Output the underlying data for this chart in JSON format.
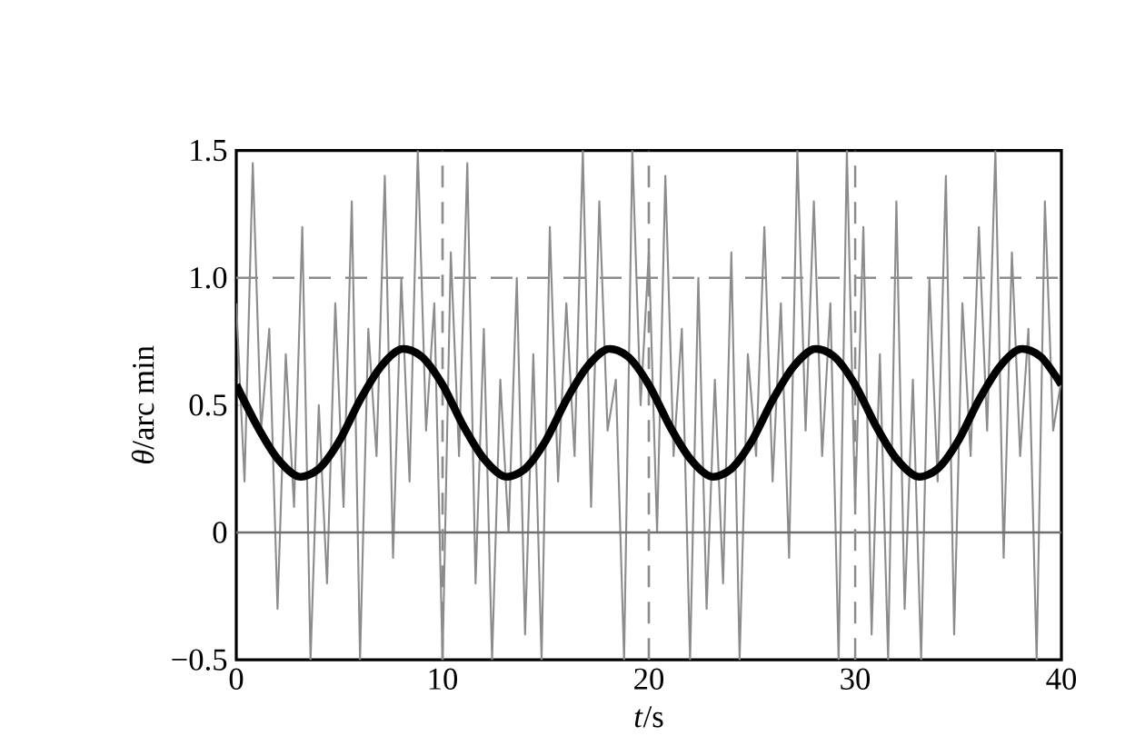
{
  "chart_data": {
    "type": "line",
    "xlabel": "*t*/s",
    "ylabel": "*θ*/arc min",
    "xlim": [
      0,
      40
    ],
    "ylim": [
      -0.5,
      1.5
    ],
    "xticks": [
      0,
      10,
      20,
      30,
      40
    ],
    "yticks": [
      {
        "value": -0.5,
        "label": "−0.5"
      },
      0,
      0.5,
      {
        "value": 1.0,
        "label": "1.0"
      },
      1.5
    ],
    "grid": false,
    "marker": "none",
    "ref_lines": [
      {
        "axis": "y",
        "value": 1.0,
        "color": "#8c8c8c",
        "line_style": "dashed"
      },
      {
        "axis": "y",
        "value": 0,
        "color": "#6e6e6e",
        "line_style": "solid"
      },
      {
        "axis": "x",
        "value": 10,
        "color": "#8c8c8c",
        "line_style": "dashed"
      },
      {
        "axis": "x",
        "value": 20,
        "color": "#8c8c8c",
        "line_style": "dashed"
      },
      {
        "axis": "x",
        "value": 30,
        "color": "#8c8c8c",
        "line_style": "dashed"
      }
    ],
    "series": [
      {
        "color": "#8c8c8c",
        "line_style": "solid",
        "x": [
          0,
          0.4,
          0.8,
          1.2,
          1.6,
          2,
          2.4,
          2.8,
          3.2,
          3.6,
          4,
          4.4,
          4.8,
          5.2,
          5.6,
          6,
          6.4,
          6.8,
          7.2,
          7.6,
          8,
          8.4,
          8.8,
          9.2,
          9.6,
          10,
          10.4,
          10.8,
          11.2,
          11.6,
          12,
          12.4,
          12.8,
          13.2,
          13.6,
          14,
          14.4,
          14.8,
          15.2,
          15.6,
          16,
          16.4,
          16.8,
          17.2,
          17.6,
          18,
          18.4,
          18.8,
          19.2,
          19.6,
          20,
          20.4,
          20.8,
          21.2,
          21.6,
          22,
          22.4,
          22.8,
          23.2,
          23.6,
          24,
          24.4,
          24.8,
          25.2,
          25.6,
          26,
          26.4,
          26.8,
          27.2,
          27.6,
          28,
          28.4,
          28.8,
          29.2,
          29.6,
          30,
          30.4,
          30.8,
          31.2,
          31.6,
          32,
          32.4,
          32.8,
          33.2,
          33.6,
          34,
          34.4,
          34.8,
          35.2,
          35.6,
          36,
          36.4,
          36.8,
          37.2,
          37.6,
          38,
          38.4,
          38.8,
          39.2,
          39.6,
          40
        ],
        "values": [
          0.9,
          0.2,
          1.45,
          0.4,
          0.8,
          -0.3,
          0.7,
          0.1,
          1.2,
          -0.5,
          0.5,
          -0.2,
          0.9,
          0.1,
          1.3,
          -0.5,
          0.8,
          0.3,
          1.4,
          -0.1,
          1.0,
          0.2,
          1.5,
          0.4,
          0.9,
          -0.5,
          1.1,
          0.3,
          1.45,
          -0.2,
          0.8,
          -0.5,
          0.6,
          0.0,
          1.0,
          -0.4,
          0.7,
          -0.5,
          1.2,
          0.2,
          0.9,
          0.3,
          1.5,
          0.1,
          1.3,
          0.4,
          0.6,
          -0.5,
          1.5,
          0.5,
          1.1,
          0.0,
          1.4,
          0.3,
          0.8,
          -0.5,
          1.0,
          -0.3,
          0.6,
          -0.2,
          1.1,
          -0.5,
          0.7,
          0.3,
          1.2,
          0.2,
          0.9,
          -0.1,
          1.5,
          0.4,
          1.3,
          0.3,
          0.9,
          -0.5,
          1.5,
          0.1,
          1.2,
          -0.4,
          0.7,
          -0.5,
          1.3,
          -0.3,
          0.6,
          -0.5,
          1.0,
          0.2,
          1.4,
          -0.4,
          0.9,
          0.3,
          1.2,
          0.4,
          1.5,
          -0.1,
          1.1,
          0.3,
          0.8,
          -0.5,
          1.3,
          0.4,
          0.6
        ]
      },
      {
        "color": "#000000",
        "line_style": "solid",
        "x": [
          0,
          1,
          2,
          3,
          4,
          5,
          6,
          7,
          8,
          9,
          10,
          11,
          12,
          13,
          14,
          15,
          16,
          17,
          18,
          19,
          20,
          21,
          22,
          23,
          24,
          25,
          26,
          27,
          28,
          29,
          30,
          31,
          32,
          33,
          34,
          35,
          36,
          37,
          38,
          39,
          40
        ],
        "values": [
          0.58,
          0.42,
          0.29,
          0.22,
          0.25,
          0.36,
          0.52,
          0.65,
          0.72,
          0.69,
          0.58,
          0.42,
          0.29,
          0.22,
          0.25,
          0.36,
          0.52,
          0.65,
          0.72,
          0.69,
          0.58,
          0.42,
          0.29,
          0.22,
          0.25,
          0.36,
          0.52,
          0.65,
          0.72,
          0.69,
          0.58,
          0.42,
          0.29,
          0.22,
          0.25,
          0.36,
          0.52,
          0.65,
          0.72,
          0.69,
          0.58
        ]
      }
    ]
  }
}
